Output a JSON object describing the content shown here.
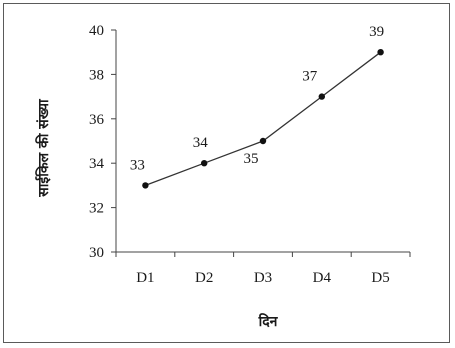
{
  "chart_data": {
    "type": "line",
    "categories": [
      "D1",
      "D2",
      "D3",
      "D4",
      "D5"
    ],
    "series": [
      {
        "values": [
          33,
          34,
          35,
          37,
          39
        ]
      }
    ],
    "data_labels": [
      "33",
      "34",
      "35",
      "37",
      "39"
    ],
    "xlabel": "दिन",
    "ylabel": "साईकिल की संख्या",
    "ylim": [
      30,
      40
    ],
    "yticks": [
      30,
      32,
      34,
      36,
      38,
      40
    ],
    "ytick_labels": [
      "30",
      "32",
      "34",
      "36",
      "38",
      "40"
    ],
    "grid": false,
    "colors": {
      "line": "#333333",
      "marker": "#111111",
      "axis": "#444444"
    }
  }
}
